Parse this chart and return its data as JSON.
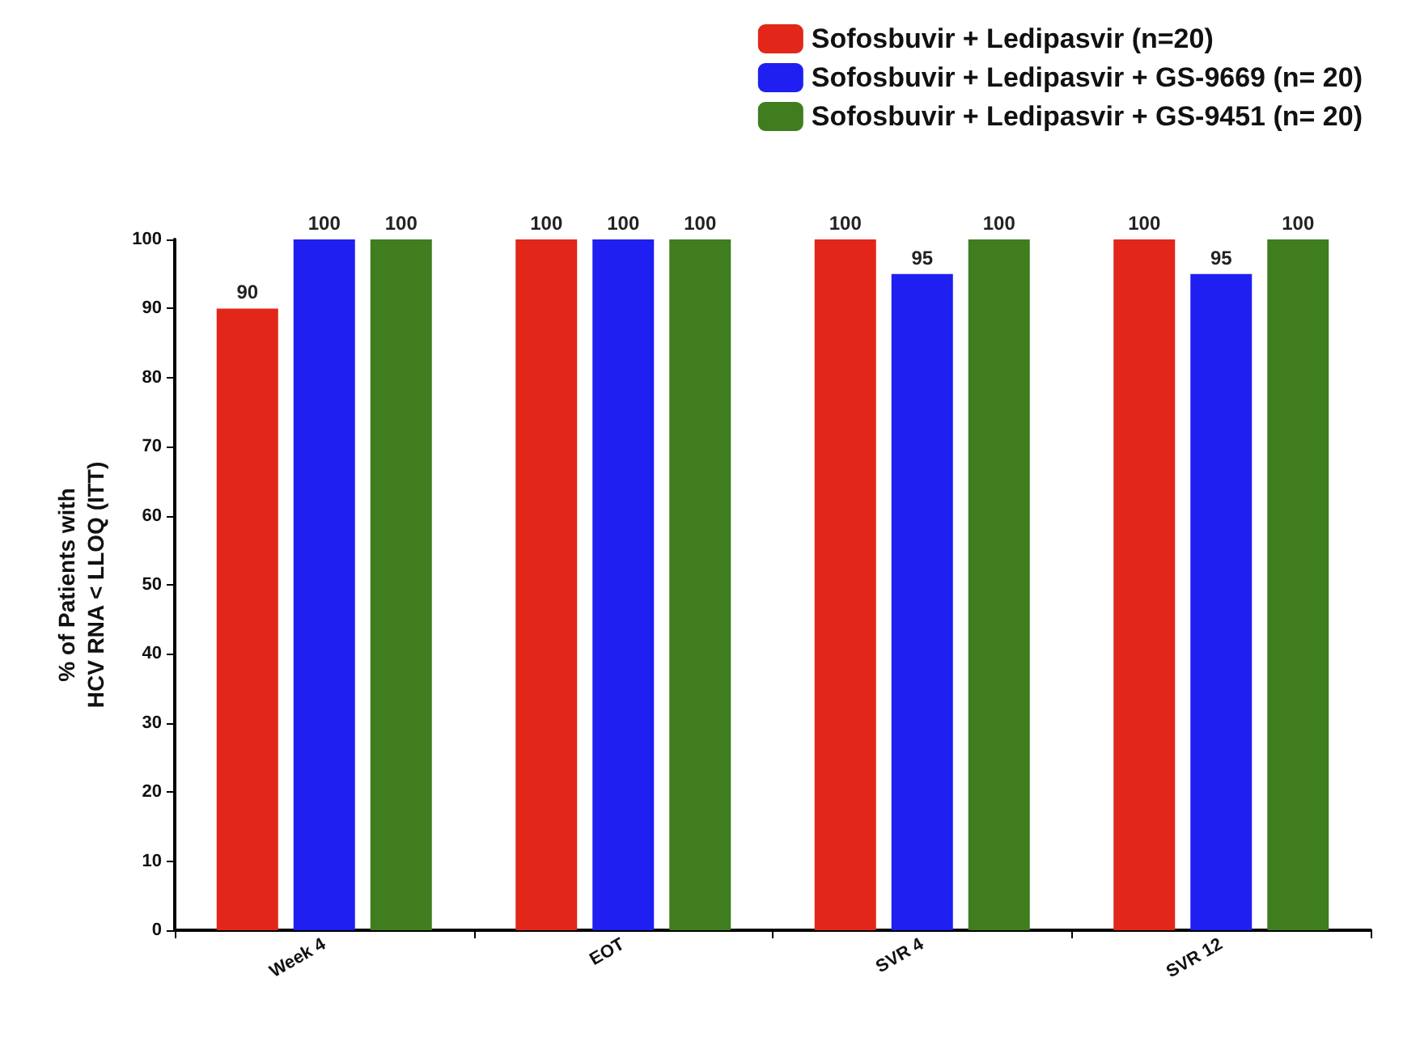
{
  "chart_data": {
    "type": "bar",
    "ylabel": "% of Patients with\nHCV RNA < LLOQ (ITT)",
    "categories": [
      "Week 4",
      "EOT",
      "SVR 4",
      "SVR 12"
    ],
    "series": [
      {
        "name": "Sofosbuvir + Ledipasvir (n=20)",
        "color": "#e2261a",
        "values": [
          90,
          100,
          100,
          100
        ]
      },
      {
        "name": "Sofosbuvir + Ledipasvir + GS-9669 (n= 20)",
        "color": "#1f1ff2",
        "values": [
          100,
          100,
          95,
          95
        ]
      },
      {
        "name": "Sofosbuvir + Ledipasvir + GS-9451 (n= 20)",
        "color": "#3f7d1f",
        "values": [
          100,
          100,
          100,
          100
        ]
      }
    ],
    "ylim": [
      0,
      100
    ],
    "yticks": [
      0,
      10,
      20,
      30,
      40,
      50,
      60,
      70,
      80,
      90,
      100
    ],
    "data_labels": true,
    "legend": "top right",
    "grid": false
  }
}
